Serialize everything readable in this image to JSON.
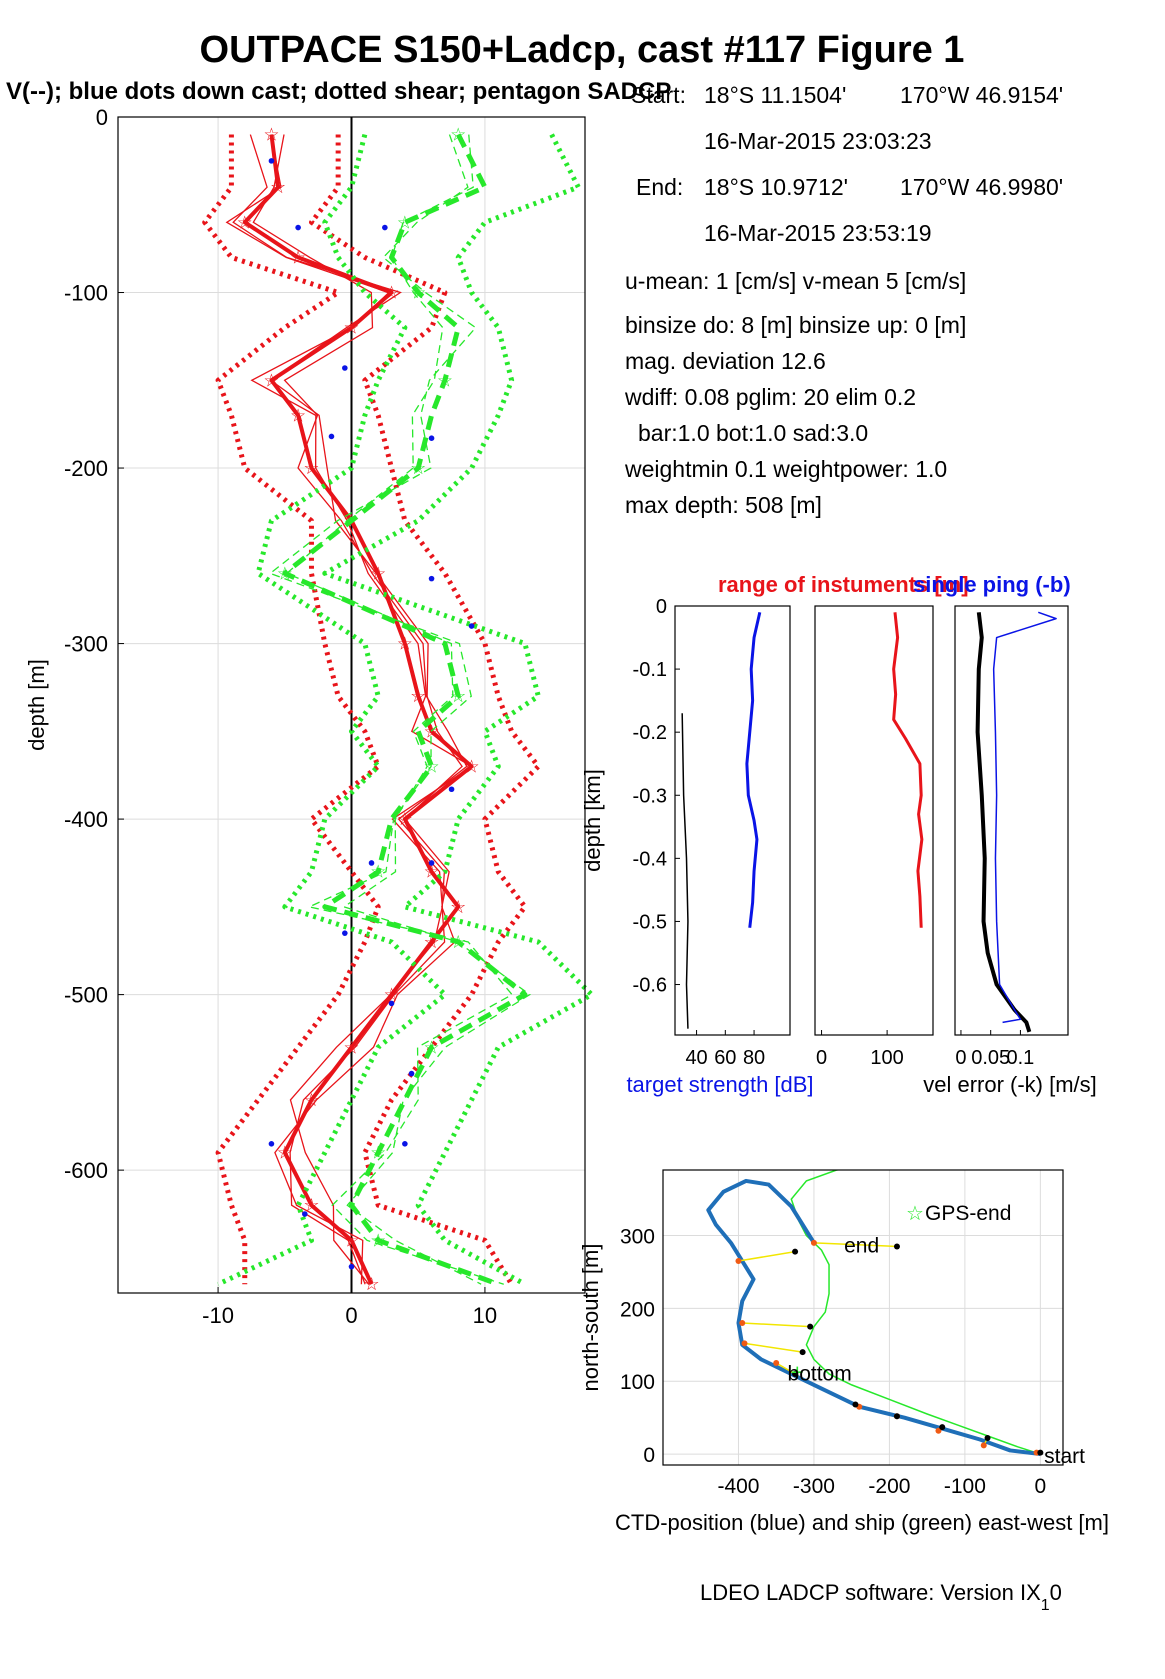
{
  "title": "OUTPACE S150+Ladcp, cast #117  Figure 1",
  "subtitle": "V(--); blue dots down cast; dotted shear; pentagon SADCP",
  "colors": {
    "red": "#e8141a",
    "green": "#27e82b",
    "blue": "#0a14e6",
    "ctd_blue": "#1f6fb8",
    "black": "#000000",
    "yellow": "#f2e600",
    "grid": "#dcdcdc"
  },
  "info": {
    "start_label": "Start:",
    "start_lat": "18°S 11.1504'",
    "start_lon": "170°W 46.9154'",
    "start_time": "16-Mar-2015 23:03:23",
    "end_label": "End:",
    "end_lat": "18°S 10.9712'",
    "end_lon": "170°W 46.9980'",
    "end_time": "16-Mar-2015 23:53:19",
    "mean": "u-mean:   1 [cm/s]    v-mean   5 [cm/s]",
    "binsize": "binsize do: 8 [m]  binsize up:  0 [m]",
    "magdev": "mag. deviation 12.6",
    "wdiff": "wdiff: 0.08  pglim: 20  elim 0.2",
    "bar": "bar:1.0 bot:1.0 sad:3.0",
    "weight": "weightmin 0.1  weightpower: 1.0",
    "maxdepth": "max depth: 508 [m]"
  },
  "footer": "LDEO LADCP software: Version IX",
  "footer_sub": "1",
  "footer_tail": "0",
  "chart_data": [
    {
      "type": "line",
      "id": "velocity-profile",
      "ylabel": "depth [m]",
      "xlim": [
        -17.5,
        17.5
      ],
      "ylim": [
        -670,
        0
      ],
      "xticks": [
        -10,
        0,
        10
      ],
      "yticks": [
        0,
        -100,
        -200,
        -300,
        -400,
        -500,
        -600
      ],
      "xtick_labels": [
        "-10",
        "0",
        "10"
      ],
      "ytick_labels": [
        "0",
        "-100",
        "-200",
        "-300",
        "-400",
        "-500",
        "-600"
      ],
      "grid": true,
      "depth": [
        -10,
        -40,
        -60,
        -80,
        -100,
        -120,
        -150,
        -170,
        -200,
        -230,
        -260,
        -300,
        -330,
        -350,
        -370,
        -400,
        -430,
        -450,
        -470,
        -500,
        -530,
        -560,
        -590,
        -620,
        -640,
        -665
      ],
      "series": [
        {
          "color": "red",
          "style": "solid-thick",
          "values": [
            -6,
            -5.5,
            -8,
            -4,
            3,
            0,
            -6,
            -4,
            -3,
            0,
            2,
            4,
            5,
            6,
            9,
            4,
            6,
            8,
            6,
            3,
            0,
            -3,
            -5,
            -3,
            0,
            1.5
          ]
        },
        {
          "color": "red",
          "style": "dotted",
          "values": [
            -9,
            -9,
            -11,
            -9,
            -1,
            -5,
            -10,
            -9,
            -8,
            -3,
            -3,
            -2,
            -1,
            1,
            2,
            -3,
            0,
            2,
            1,
            -1,
            -4,
            -7,
            -10,
            -9,
            -8,
            -8
          ]
        },
        {
          "color": "red",
          "style": "dotted",
          "values": [
            -1,
            -1,
            -3,
            1,
            7,
            6,
            1,
            2,
            3,
            4,
            7,
            10,
            11,
            12,
            14,
            10,
            11,
            13,
            11,
            9,
            6,
            3,
            1,
            2,
            10,
            12
          ]
        },
        {
          "color": "green",
          "style": "dashed-thick",
          "values": [
            8,
            10,
            4,
            3,
            5,
            8,
            7,
            6,
            5,
            0,
            -5,
            7,
            8,
            5,
            6,
            3,
            2,
            -2,
            8,
            13,
            6,
            4,
            2,
            0,
            2,
            11
          ]
        },
        {
          "color": "green",
          "style": "dotted",
          "values": [
            1,
            0,
            -2,
            -1,
            1,
            4,
            2,
            1,
            0,
            -6,
            -7,
            1,
            2,
            0,
            2,
            -2,
            -3,
            -5,
            3,
            7,
            2,
            0,
            -2,
            -4,
            -3,
            -10
          ]
        },
        {
          "color": "green",
          "style": "dotted",
          "values": [
            15,
            17,
            10,
            8,
            9,
            11,
            12,
            11,
            9,
            5,
            -2,
            13,
            14,
            10,
            11,
            8,
            7,
            4,
            14,
            18,
            11,
            9,
            7,
            5,
            7,
            13
          ]
        }
      ],
      "blue_dots": [
        [
          -6,
          -25
        ],
        [
          -4,
          -63
        ],
        [
          2.5,
          -63
        ],
        [
          -0.5,
          -143
        ],
        [
          -1.5,
          -182
        ],
        [
          6,
          -183
        ],
        [
          6,
          -263
        ],
        [
          9,
          -290
        ],
        [
          7.5,
          -383
        ],
        [
          1.5,
          -425
        ],
        [
          6,
          -425
        ],
        [
          -0.5,
          -465
        ],
        [
          3,
          -505
        ],
        [
          4.5,
          -545
        ],
        [
          4,
          -585
        ],
        [
          -6,
          -585
        ],
        [
          -3.5,
          -625
        ],
        [
          0,
          -655
        ]
      ]
    },
    {
      "type": "line",
      "id": "target-strength",
      "ylabel": "depth [km]",
      "xlabel": "target strength [dB]",
      "title_red": "range of instuments [m]",
      "title_blue": "single ping (-b)",
      "xlim": [
        25,
        105
      ],
      "ylim": [
        -0.68,
        0
      ],
      "xticks": [
        40,
        60,
        80
      ],
      "xtick_labels": [
        "40",
        "60",
        "80"
      ],
      "yticks": [
        0,
        -0.1,
        -0.2,
        -0.3,
        -0.4,
        -0.5,
        -0.6
      ],
      "ytick_labels": [
        "0",
        "-0.1",
        "-0.2",
        "-0.3",
        "-0.4",
        "-0.5",
        "-0.6"
      ],
      "series": [
        {
          "color": "blue",
          "depth": [
            -0.01,
            -0.05,
            -0.1,
            -0.15,
            -0.2,
            -0.25,
            -0.3,
            -0.34,
            -0.37,
            -0.42,
            -0.47,
            -0.51
          ],
          "values": [
            84,
            80,
            78,
            79,
            77,
            75,
            76,
            80,
            82,
            80,
            79,
            77
          ]
        },
        {
          "color": "black",
          "depth": [
            -0.17,
            -0.3,
            -0.4,
            -0.5,
            -0.6,
            -0.67
          ],
          "values": [
            30,
            31,
            33,
            34,
            33,
            34
          ]
        }
      ]
    },
    {
      "type": "line",
      "id": "instrument-range",
      "xlim": [
        -10,
        170
      ],
      "ylim": [
        -0.68,
        0
      ],
      "xticks": [
        0,
        100
      ],
      "xtick_labels": [
        "0",
        "100"
      ],
      "series": [
        {
          "color": "red",
          "depth": [
            -0.01,
            -0.05,
            -0.1,
            -0.14,
            -0.18,
            -0.21,
            -0.25,
            -0.3,
            -0.33,
            -0.37,
            -0.42,
            -0.46,
            -0.51
          ],
          "values": [
            112,
            116,
            110,
            113,
            110,
            128,
            150,
            152,
            148,
            153,
            147,
            150,
            152
          ]
        }
      ]
    },
    {
      "type": "line",
      "id": "vel-error",
      "xlabel": "vel error (-k) [m/s]",
      "xlim": [
        -0.01,
        0.18
      ],
      "ylim": [
        -0.68,
        0
      ],
      "xticks": [
        0,
        0.05,
        0.1
      ],
      "xtick_labels": [
        "0",
        "0.05",
        "0.1"
      ],
      "series": [
        {
          "color": "black",
          "depth": [
            -0.01,
            -0.05,
            -0.1,
            -0.2,
            -0.3,
            -0.4,
            -0.5,
            -0.55,
            -0.6,
            -0.64,
            -0.66,
            -0.675
          ],
          "values": [
            0.03,
            0.035,
            0.03,
            0.028,
            0.035,
            0.04,
            0.038,
            0.045,
            0.06,
            0.09,
            0.11,
            0.115
          ]
        },
        {
          "color": "blue",
          "depth": [
            -0.01,
            -0.02,
            -0.05,
            -0.1,
            -0.2,
            -0.3,
            -0.4,
            -0.5,
            -0.6,
            -0.64,
            -0.655,
            -0.66
          ],
          "values": [
            0.13,
            0.16,
            0.06,
            0.055,
            0.058,
            0.06,
            0.058,
            0.06,
            0.065,
            0.09,
            0.1,
            0.07
          ]
        }
      ]
    },
    {
      "type": "line",
      "id": "ctd-ship-track",
      "xlabel": "CTD-position (blue) and ship (green) east-west [m]",
      "ylabel": "north-south [m]",
      "xlim": [
        -500,
        30
      ],
      "ylim": [
        -15,
        390
      ],
      "xticks": [
        -400,
        -300,
        -200,
        -100,
        0
      ],
      "xtick_labels": [
        "-400",
        "-300",
        "-200",
        "-100",
        "0"
      ],
      "yticks": [
        0,
        100,
        200,
        300
      ],
      "ytick_labels": [
        "0",
        "100",
        "200",
        "300"
      ],
      "legend": "GPS-end",
      "legend_position": "top-right",
      "labels": {
        "start": "start",
        "end": "end",
        "bottom": "bottom"
      },
      "ctd": {
        "x": [
          0,
          -40,
          -80,
          -130,
          -180,
          -240,
          -290,
          -340,
          -370,
          -395,
          -400,
          -395,
          -380,
          -395,
          -410,
          -430,
          -440,
          -420,
          -390,
          -360,
          -330,
          -300
        ],
        "y": [
          0,
          5,
          20,
          35,
          50,
          65,
          90,
          115,
          130,
          150,
          180,
          210,
          240,
          265,
          290,
          315,
          335,
          360,
          375,
          370,
          340,
          290
        ]
      },
      "ship": {
        "x": [
          0,
          -30,
          -70,
          -110,
          -150,
          -200,
          -250,
          -280,
          -300,
          -310,
          -300,
          -285,
          -280,
          -280,
          -290,
          -310,
          -320,
          -330,
          -310,
          -270,
          -255
        ],
        "y": [
          0,
          10,
          25,
          40,
          55,
          75,
          95,
          110,
          130,
          150,
          175,
          195,
          220,
          260,
          280,
          300,
          320,
          350,
          375,
          390,
          392
        ]
      },
      "pairs": [
        [
          [
            -300,
            290
          ],
          [
            -190,
            285
          ]
        ],
        [
          [
            -400,
            265
          ],
          [
            -325,
            278
          ]
        ],
        [
          [
            -395,
            180
          ],
          [
            -305,
            175
          ]
        ],
        [
          [
            -392,
            152
          ],
          [
            -315,
            140
          ]
        ],
        [
          [
            -350,
            125
          ],
          [
            -325,
            110
          ]
        ],
        [
          [
            -240,
            65
          ],
          [
            -245,
            68
          ]
        ],
        [
          [
            -190,
            52
          ],
          [
            -190,
            52
          ]
        ],
        [
          [
            -135,
            32
          ],
          [
            -130,
            37
          ]
        ],
        [
          [
            -75,
            12
          ],
          [
            -70,
            22
          ]
        ],
        [
          [
            -5,
            2
          ],
          [
            0,
            2
          ]
        ]
      ],
      "gps_end": [
        -322,
        112
      ]
    }
  ]
}
